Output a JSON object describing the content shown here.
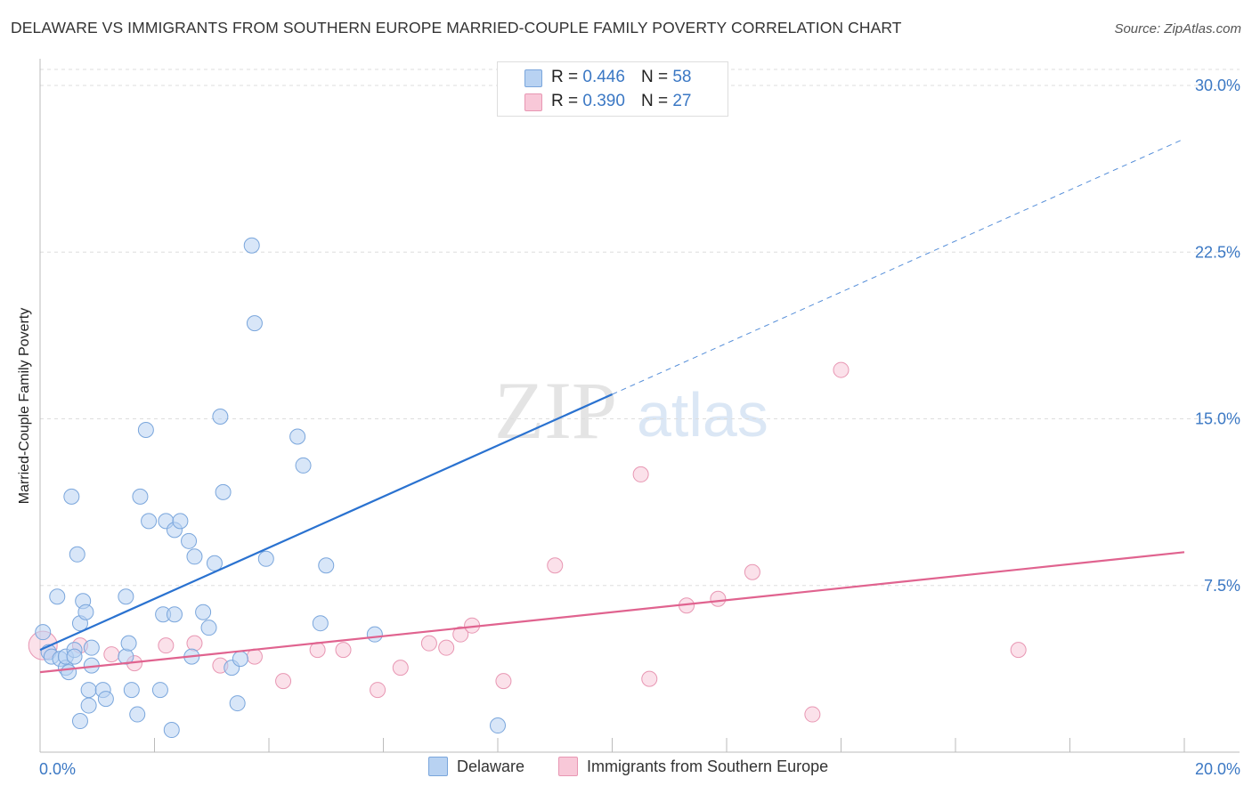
{
  "title": "DELAWARE VS IMMIGRANTS FROM SOUTHERN EUROPE MARRIED-COUPLE FAMILY POVERTY CORRELATION CHART",
  "source": "Source: ZipAtlas.com",
  "watermark": {
    "zip": "ZIP",
    "atlas": "atlas"
  },
  "legend": {
    "rows": [
      {
        "r_label": "R =",
        "r_value": "0.446",
        "n_label": "N =",
        "n_value": "58"
      },
      {
        "r_label": "R =",
        "r_value": "0.390",
        "n_label": "N =",
        "n_value": "27"
      }
    ]
  },
  "bottom_legend": {
    "series1": "Delaware",
    "series2": "Immigrants from Southern Europe"
  },
  "colors": {
    "blue_fill": "#b8d2f2",
    "blue_stroke": "#7aa6dc",
    "blue_line": "#2a72d0",
    "pink_fill": "#f8c8d8",
    "pink_stroke": "#e897b3",
    "pink_line": "#e0638f",
    "axis_text": "#3b78c4",
    "grid": "#dddddd"
  },
  "chart_data": {
    "type": "scatter",
    "title": "DELAWARE VS IMMIGRANTS FROM SOUTHERN EUROPE MARRIED-COUPLE FAMILY POVERTY CORRELATION CHART",
    "xlabel": "",
    "ylabel": "Married-Couple Family Poverty",
    "xlim": [
      0,
      20
    ],
    "ylim": [
      0,
      30
    ],
    "x_tick_labels": [
      "0.0%",
      "20.0%"
    ],
    "y_ticks": [
      7.5,
      15.0,
      22.5,
      30.0
    ],
    "y_tick_labels": [
      "7.5%",
      "15.0%",
      "22.5%",
      "30.0%"
    ],
    "grid": true,
    "legend_position": "top-center",
    "series": [
      {
        "name": "Delaware",
        "points": [
          [
            0.05,
            5.4
          ],
          [
            0.15,
            4.5
          ],
          [
            0.2,
            4.3
          ],
          [
            0.3,
            7.0
          ],
          [
            0.35,
            4.2
          ],
          [
            0.45,
            3.8
          ],
          [
            0.45,
            4.3
          ],
          [
            0.5,
            3.6
          ],
          [
            0.55,
            11.5
          ],
          [
            0.6,
            4.6
          ],
          [
            0.6,
            4.3
          ],
          [
            0.7,
            5.8
          ],
          [
            0.65,
            8.9
          ],
          [
            0.7,
            1.4
          ],
          [
            0.75,
            6.8
          ],
          [
            0.8,
            6.3
          ],
          [
            0.85,
            2.8
          ],
          [
            0.85,
            2.1
          ],
          [
            0.9,
            4.7
          ],
          [
            0.9,
            3.9
          ],
          [
            1.1,
            2.8
          ],
          [
            1.15,
            2.4
          ],
          [
            1.5,
            7.0
          ],
          [
            1.5,
            4.3
          ],
          [
            1.55,
            4.9
          ],
          [
            1.6,
            2.8
          ],
          [
            1.7,
            1.7
          ],
          [
            1.75,
            11.5
          ],
          [
            1.85,
            14.5
          ],
          [
            1.9,
            10.4
          ],
          [
            2.1,
            2.8
          ],
          [
            2.15,
            6.2
          ],
          [
            2.2,
            10.4
          ],
          [
            2.3,
            1.0
          ],
          [
            2.35,
            6.2
          ],
          [
            2.35,
            10.0
          ],
          [
            2.45,
            10.4
          ],
          [
            2.6,
            9.5
          ],
          [
            2.65,
            4.3
          ],
          [
            2.7,
            8.8
          ],
          [
            2.85,
            6.3
          ],
          [
            2.95,
            5.6
          ],
          [
            3.05,
            8.5
          ],
          [
            3.15,
            15.1
          ],
          [
            3.2,
            11.7
          ],
          [
            3.35,
            3.8
          ],
          [
            3.45,
            2.2
          ],
          [
            3.5,
            4.2
          ],
          [
            3.7,
            22.8
          ],
          [
            3.75,
            19.3
          ],
          [
            3.95,
            8.7
          ],
          [
            4.5,
            14.2
          ],
          [
            4.6,
            12.9
          ],
          [
            4.9,
            5.8
          ],
          [
            5.0,
            8.4
          ],
          [
            5.85,
            5.3
          ],
          [
            8.0,
            1.2
          ],
          [
            10.3,
            29.6
          ]
        ],
        "trend": {
          "x": [
            0.0,
            10.0,
            20.0
          ],
          "y": [
            4.6,
            16.1,
            27.6
          ],
          "dashed_from_x": 10.0
        }
      },
      {
        "name": "Immigrants from Southern Europe",
        "points": [
          [
            0.05,
            4.8
          ],
          [
            0.7,
            4.8
          ],
          [
            1.25,
            4.4
          ],
          [
            1.65,
            4.0
          ],
          [
            2.2,
            4.8
          ],
          [
            2.7,
            4.9
          ],
          [
            3.15,
            3.9
          ],
          [
            3.75,
            4.3
          ],
          [
            4.25,
            3.2
          ],
          [
            4.85,
            4.6
          ],
          [
            5.3,
            4.6
          ],
          [
            5.9,
            2.8
          ],
          [
            6.3,
            3.8
          ],
          [
            6.8,
            4.9
          ],
          [
            7.1,
            4.7
          ],
          [
            7.35,
            5.3
          ],
          [
            7.55,
            5.7
          ],
          [
            8.1,
            3.2
          ],
          [
            9.0,
            8.4
          ],
          [
            10.5,
            12.5
          ],
          [
            10.65,
            3.3
          ],
          [
            11.3,
            6.6
          ],
          [
            11.85,
            6.9
          ],
          [
            12.45,
            8.1
          ],
          [
            13.5,
            1.7
          ],
          [
            14.0,
            17.2
          ],
          [
            17.1,
            4.6
          ]
        ],
        "trend": {
          "x": [
            0.0,
            20.0
          ],
          "y": [
            3.6,
            9.0
          ]
        }
      }
    ]
  }
}
